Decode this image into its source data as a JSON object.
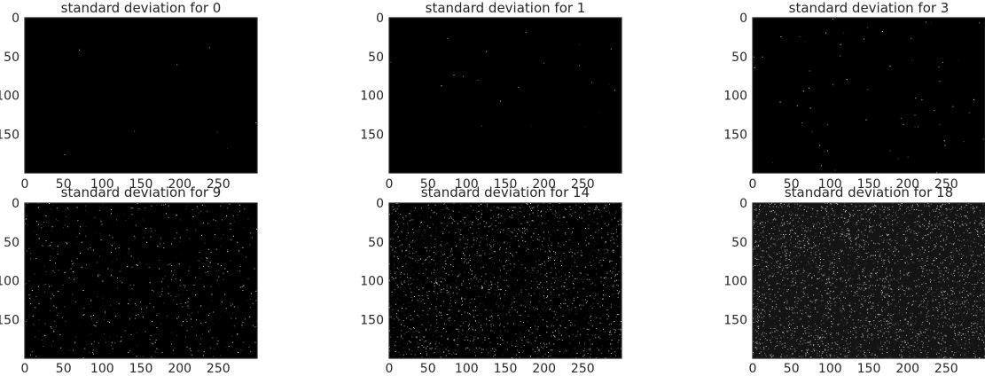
{
  "chart_data": [
    {
      "type": "heatmap",
      "title": "standard deviation for 0",
      "xticks": [
        0,
        50,
        100,
        150,
        200,
        250
      ],
      "yticks": [
        0,
        50,
        100,
        150
      ],
      "xlim": [
        0,
        300
      ],
      "ylim": [
        200,
        0
      ],
      "colormap": "gray",
      "background": "#000000",
      "noise_fraction": 0.0004,
      "noise_mean_brightness": 0.55,
      "grid": false
    },
    {
      "type": "heatmap",
      "title": "standard deviation for 1",
      "xticks": [
        0,
        50,
        100,
        150,
        200,
        250
      ],
      "yticks": [
        0,
        50,
        100,
        150
      ],
      "xlim": [
        0,
        300
      ],
      "ylim": [
        200,
        0
      ],
      "colormap": "gray",
      "background": "#000000",
      "noise_fraction": 0.001,
      "noise_mean_brightness": 0.55,
      "grid": false
    },
    {
      "type": "heatmap",
      "title": "standard deviation for 3",
      "xticks": [
        0,
        50,
        100,
        150,
        200,
        250
      ],
      "yticks": [
        0,
        50,
        100,
        150
      ],
      "xlim": [
        0,
        300
      ],
      "ylim": [
        200,
        0
      ],
      "colormap": "gray",
      "background": "#000000",
      "noise_fraction": 0.003,
      "noise_mean_brightness": 0.6,
      "grid": false
    },
    {
      "type": "heatmap",
      "title": "standard deviation for 9",
      "xticks": [
        0,
        50,
        100,
        150,
        200,
        250
      ],
      "yticks": [
        0,
        50,
        100,
        150
      ],
      "xlim": [
        0,
        300
      ],
      "ylim": [
        200,
        0
      ],
      "colormap": "gray",
      "background": "#000000",
      "noise_fraction": 0.03,
      "noise_mean_brightness": 0.55,
      "grid": false
    },
    {
      "type": "heatmap",
      "title": "standard deviation for 14",
      "xticks": [
        0,
        50,
        100,
        150,
        200,
        250
      ],
      "yticks": [
        0,
        50,
        100,
        150
      ],
      "xlim": [
        0,
        300
      ],
      "ylim": [
        200,
        0
      ],
      "colormap": "gray",
      "background": "#000000",
      "noise_fraction": 0.1,
      "noise_mean_brightness": 0.45,
      "grid": false
    },
    {
      "type": "heatmap",
      "title": "standard deviation for 18",
      "xticks": [
        0,
        50,
        100,
        150,
        200,
        250
      ],
      "yticks": [
        0,
        50,
        100,
        150
      ],
      "xlim": [
        0,
        300
      ],
      "ylim": [
        200,
        0
      ],
      "colormap": "gray",
      "background": "#141414",
      "noise_fraction": 0.2,
      "noise_mean_brightness": 0.45,
      "grid": false
    }
  ],
  "colors": {
    "frame": "#262626",
    "tick_text": "#262626",
    "figure_background": "#ffffff"
  }
}
